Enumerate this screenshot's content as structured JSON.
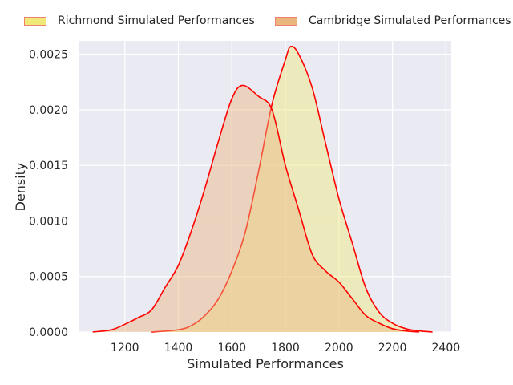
{
  "chart_data": {
    "type": "area",
    "title": "",
    "xlabel": "Simulated Performances",
    "ylabel": "Density",
    "xlim": [
      1030,
      2420
    ],
    "ylim": [
      0,
      0.00262
    ],
    "xticks": [
      1200,
      1400,
      1600,
      1800,
      2000,
      2200,
      2400
    ],
    "yticks": [
      0.0,
      0.0005,
      0.001,
      0.0015,
      0.002,
      0.0025
    ],
    "ytick_labels": [
      "0.0000",
      "0.0005",
      "0.0010",
      "0.0015",
      "0.0020",
      "0.0025"
    ],
    "grid": true,
    "legend_position": "top",
    "series": [
      {
        "name": "Richmond Simulated Performances",
        "fill": "#f0e97a",
        "line": "#ff0000",
        "x": [
          1300,
          1400,
          1450,
          1500,
          1550,
          1600,
          1650,
          1700,
          1750,
          1800,
          1820,
          1850,
          1900,
          1950,
          2000,
          2050,
          2100,
          2150,
          2200,
          2250,
          2300,
          2350
        ],
        "y": [
          0.0,
          2e-05,
          6e-05,
          0.00015,
          0.0003,
          0.00055,
          0.0009,
          0.00145,
          0.00205,
          0.00245,
          0.00257,
          0.0025,
          0.0022,
          0.0017,
          0.0012,
          0.0008,
          0.0004,
          0.00018,
          8e-05,
          3e-05,
          1e-05,
          0.0
        ]
      },
      {
        "name": "Cambridge Simulated Performances",
        "fill": "#eab67e",
        "line": "#ff0000",
        "x": [
          1080,
          1150,
          1200,
          1250,
          1300,
          1350,
          1400,
          1450,
          1500,
          1550,
          1600,
          1640,
          1700,
          1750,
          1800,
          1850,
          1900,
          1950,
          2000,
          2050,
          2100,
          2150,
          2200,
          2250,
          2300
        ],
        "y": [
          0.0,
          2e-05,
          7e-05,
          0.00013,
          0.0002,
          0.0004,
          0.0006,
          0.00092,
          0.0013,
          0.00172,
          0.0021,
          0.00222,
          0.00212,
          0.002,
          0.0015,
          0.0011,
          0.0007,
          0.00055,
          0.00045,
          0.0003,
          0.00015,
          8e-05,
          3e-05,
          1e-05,
          0.0
        ]
      }
    ]
  }
}
